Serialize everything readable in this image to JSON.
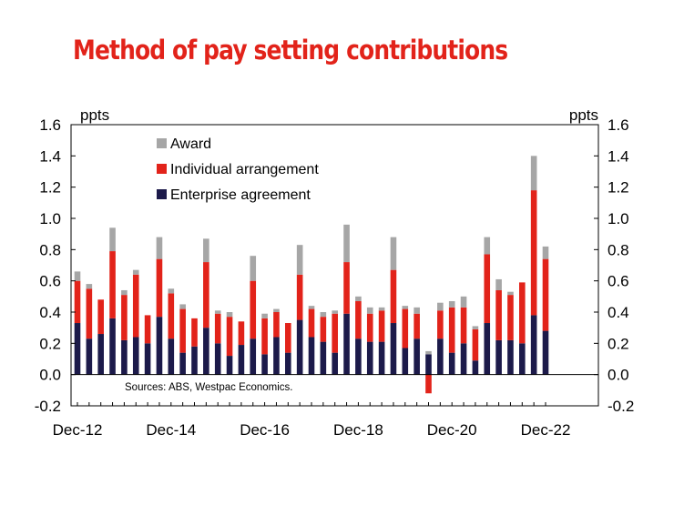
{
  "title": "Method of pay setting contributions",
  "chart_data": {
    "type": "bar",
    "stacked": true,
    "left_unit": "ppts",
    "right_unit": "ppts",
    "ylim": [
      -0.2,
      1.6
    ],
    "yticks": [
      "-0.2",
      "0.0",
      "0.2",
      "0.4",
      "0.6",
      "0.8",
      "1.0",
      "1.2",
      "1.4",
      "1.6"
    ],
    "yticks_values": [
      -0.2,
      0.0,
      0.2,
      0.4,
      0.6,
      0.8,
      1.0,
      1.2,
      1.4,
      1.6
    ],
    "xtick_labels": [
      "Dec-12",
      "Dec-14",
      "Dec-16",
      "Dec-18",
      "Dec-20",
      "Dec-22"
    ],
    "xtick_positions": [
      0,
      8,
      16,
      24,
      32,
      40
    ],
    "grid": false,
    "legend_position": "top-left",
    "source": "Sources: ABS, Westpac Economics.",
    "series": [
      {
        "name": "Enterprise agreement",
        "color": "#1c1a4a",
        "values": [
          0.33,
          0.23,
          0.26,
          0.36,
          0.22,
          0.24,
          0.2,
          0.37,
          0.23,
          0.14,
          0.18,
          0.3,
          0.2,
          0.12,
          0.19,
          0.23,
          0.13,
          0.24,
          0.14,
          0.35,
          0.24,
          0.21,
          0.14,
          0.39,
          0.23,
          0.21,
          0.21,
          0.33,
          0.17,
          0.23,
          0.13,
          0.23,
          0.14,
          0.2,
          0.09,
          0.33,
          0.22,
          0.22,
          0.2,
          0.38,
          0.28
        ]
      },
      {
        "name": "Individual arrangement",
        "color": "#e2231a",
        "values": [
          0.27,
          0.32,
          0.22,
          0.43,
          0.29,
          0.4,
          0.18,
          0.37,
          0.29,
          0.28,
          0.18,
          0.42,
          0.19,
          0.25,
          0.15,
          0.37,
          0.23,
          0.16,
          0.19,
          0.29,
          0.18,
          0.16,
          0.25,
          0.33,
          0.24,
          0.18,
          0.2,
          0.34,
          0.25,
          0.16,
          -0.12,
          0.18,
          0.29,
          0.23,
          0.2,
          0.44,
          0.32,
          0.29,
          0.39,
          0.8,
          0.46
        ]
      },
      {
        "name": "Award",
        "color": "#a6a6a6",
        "values": [
          0.06,
          0.03,
          0.0,
          0.15,
          0.03,
          0.03,
          0.0,
          0.14,
          0.03,
          0.03,
          0.0,
          0.15,
          0.02,
          0.03,
          0.0,
          0.16,
          0.03,
          0.02,
          0.0,
          0.19,
          0.02,
          0.03,
          0.02,
          0.24,
          0.03,
          0.04,
          0.02,
          0.21,
          0.02,
          0.04,
          0.02,
          0.05,
          0.04,
          0.07,
          0.02,
          0.11,
          0.07,
          0.02,
          0.0,
          0.22,
          0.08
        ]
      }
    ],
    "legend_order": [
      "Award",
      "Individual arrangement",
      "Enterprise agreement"
    ]
  }
}
